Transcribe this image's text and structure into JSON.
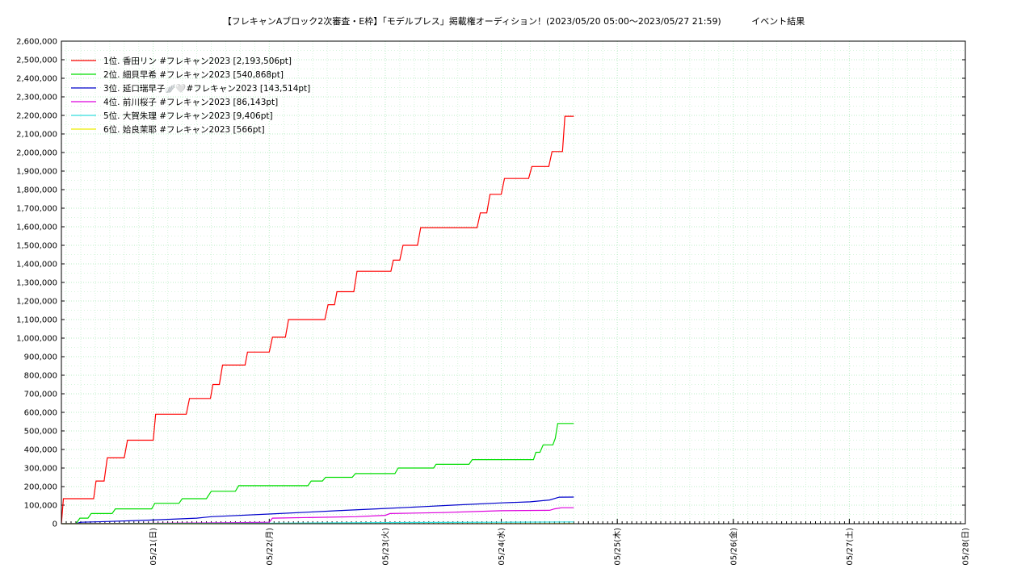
{
  "chart_data": {
    "type": "line",
    "title": "【フレキャンAブロック2次審査・E枠】「モデルプレス」掲載権オーディション！(2023/05/20 05:00〜2023/05/27 21:59)",
    "subtitle": "イベント結果",
    "xlabel": "",
    "ylabel": "",
    "xlim": [
      "2023-05-20 05:00",
      "2023-05-28 00:00"
    ],
    "ylim": [
      0,
      2600000
    ],
    "grid": true,
    "legend_position": "top-left",
    "x_ticks": [
      {
        "label": "05/21(日)",
        "t": "2023-05-21 00:00"
      },
      {
        "label": "05/22(月)",
        "t": "2023-05-22 00:00"
      },
      {
        "label": "05/23(火)",
        "t": "2023-05-23 00:00"
      },
      {
        "label": "05/24(水)",
        "t": "2023-05-24 00:00"
      },
      {
        "label": "05/25(木)",
        "t": "2023-05-25 00:00"
      },
      {
        "label": "05/26(金)",
        "t": "2023-05-26 00:00"
      },
      {
        "label": "05/27(土)",
        "t": "2023-05-27 00:00"
      },
      {
        "label": "05/28(日)",
        "t": "2023-05-28 00:00"
      }
    ],
    "y_ticks": [
      {
        "label": "2,600,000",
        "v": 2600000
      },
      {
        "label": "2,500,000",
        "v": 2500000
      },
      {
        "label": "2,400,000",
        "v": 2400000
      },
      {
        "label": "2,300,000",
        "v": 2300000
      },
      {
        "label": "2,200,000",
        "v": 2200000
      },
      {
        "label": "2,100,000",
        "v": 2100000
      },
      {
        "label": "2,000,000",
        "v": 2000000
      },
      {
        "label": "1,900,000",
        "v": 1900000
      },
      {
        "label": "1,800,000",
        "v": 1800000
      },
      {
        "label": "1,700,000",
        "v": 1700000
      },
      {
        "label": "1,600,000",
        "v": 1600000
      },
      {
        "label": "1,500,000",
        "v": 1500000
      },
      {
        "label": "1,400,000",
        "v": 1400000
      },
      {
        "label": "1,300,000",
        "v": 1300000
      },
      {
        "label": "1,200,000",
        "v": 1200000
      },
      {
        "label": "1,100,000",
        "v": 1100000
      },
      {
        "label": "1,000,000",
        "v": 1000000
      },
      {
        "label": "900,000",
        "v": 900000
      },
      {
        "label": "800,000",
        "v": 800000
      },
      {
        "label": "700,000",
        "v": 700000
      },
      {
        "label": "600,000",
        "v": 600000
      },
      {
        "label": "500,000",
        "v": 500000
      },
      {
        "label": "400,000",
        "v": 400000
      },
      {
        "label": "300,000",
        "v": 300000
      },
      {
        "label": "200,000",
        "v": 200000
      },
      {
        "label": "100,000",
        "v": 100000
      },
      {
        "label": "0",
        "v": 0
      }
    ],
    "series": [
      {
        "name": "1位. 香田リン #フレキャン2023 [2,193,506pt]",
        "color": "#ff0000",
        "points": [
          [
            "2023-05-20 05:00",
            0
          ],
          [
            "2023-05-20 05:25",
            135000
          ],
          [
            "2023-05-20 11:40",
            135000
          ],
          [
            "2023-05-20 12:10",
            230000
          ],
          [
            "2023-05-20 13:50",
            230000
          ],
          [
            "2023-05-20 14:30",
            355000
          ],
          [
            "2023-05-20 18:00",
            355000
          ],
          [
            "2023-05-20 18:40",
            450000
          ],
          [
            "2023-05-21 00:00",
            450000
          ],
          [
            "2023-05-21 00:30",
            590000
          ],
          [
            "2023-05-21 06:50",
            590000
          ],
          [
            "2023-05-21 07:30",
            675000
          ],
          [
            "2023-05-21 11:50",
            675000
          ],
          [
            "2023-05-21 12:20",
            750000
          ],
          [
            "2023-05-21 13:40",
            750000
          ],
          [
            "2023-05-21 14:20",
            855000
          ],
          [
            "2023-05-21 19:00",
            855000
          ],
          [
            "2023-05-21 19:30",
            925000
          ],
          [
            "2023-05-22 00:00",
            925000
          ],
          [
            "2023-05-22 00:40",
            1005000
          ],
          [
            "2023-05-22 03:20",
            1005000
          ],
          [
            "2023-05-22 04:00",
            1100000
          ],
          [
            "2023-05-22 11:30",
            1100000
          ],
          [
            "2023-05-22 12:10",
            1180000
          ],
          [
            "2023-05-22 13:30",
            1180000
          ],
          [
            "2023-05-22 14:00",
            1250000
          ],
          [
            "2023-05-22 17:30",
            1250000
          ],
          [
            "2023-05-22 18:10",
            1360000
          ],
          [
            "2023-05-23 01:10",
            1360000
          ],
          [
            "2023-05-23 01:40",
            1420000
          ],
          [
            "2023-05-23 03:00",
            1420000
          ],
          [
            "2023-05-23 03:40",
            1500000
          ],
          [
            "2023-05-23 06:40",
            1500000
          ],
          [
            "2023-05-23 07:20",
            1595000
          ],
          [
            "2023-05-23 19:00",
            1595000
          ],
          [
            "2023-05-23 19:40",
            1675000
          ],
          [
            "2023-05-23 21:00",
            1675000
          ],
          [
            "2023-05-23 21:40",
            1775000
          ],
          [
            "2023-05-24 00:00",
            1775000
          ],
          [
            "2023-05-24 00:40",
            1860000
          ],
          [
            "2023-05-24 05:40",
            1860000
          ],
          [
            "2023-05-24 06:20",
            1925000
          ],
          [
            "2023-05-24 09:50",
            1925000
          ],
          [
            "2023-05-24 10:30",
            2005000
          ],
          [
            "2023-05-24 12:40",
            2005000
          ],
          [
            "2023-05-24 13:10",
            2195000
          ],
          [
            "2023-05-24 15:00",
            2195000
          ]
        ]
      },
      {
        "name": "2位. 細貝早希 #フレキャン2023 [540,868pt]",
        "color": "#00dd00",
        "points": [
          [
            "2023-05-20 08:00",
            0
          ],
          [
            "2023-05-20 08:50",
            30000
          ],
          [
            "2023-05-20 10:30",
            30000
          ],
          [
            "2023-05-20 11:10",
            55000
          ],
          [
            "2023-05-20 15:30",
            55000
          ],
          [
            "2023-05-20 16:10",
            80000
          ],
          [
            "2023-05-20 23:40",
            80000
          ],
          [
            "2023-05-21 00:20",
            110000
          ],
          [
            "2023-05-21 05:20",
            110000
          ],
          [
            "2023-05-21 06:00",
            135000
          ],
          [
            "2023-05-21 11:00",
            135000
          ],
          [
            "2023-05-21 12:00",
            175000
          ],
          [
            "2023-05-21 17:00",
            175000
          ],
          [
            "2023-05-21 17:40",
            205000
          ],
          [
            "2023-05-22 08:00",
            205000
          ],
          [
            "2023-05-22 08:40",
            230000
          ],
          [
            "2023-05-22 11:00",
            230000
          ],
          [
            "2023-05-22 11:40",
            250000
          ],
          [
            "2023-05-22 17:10",
            250000
          ],
          [
            "2023-05-22 17:50",
            270000
          ],
          [
            "2023-05-23 02:00",
            270000
          ],
          [
            "2023-05-23 02:40",
            300000
          ],
          [
            "2023-05-23 10:00",
            300000
          ],
          [
            "2023-05-23 10:30",
            320000
          ],
          [
            "2023-05-23 17:20",
            320000
          ],
          [
            "2023-05-23 18:00",
            345000
          ],
          [
            "2023-05-24 06:40",
            345000
          ],
          [
            "2023-05-24 07:10",
            385000
          ],
          [
            "2023-05-24 08:00",
            385000
          ],
          [
            "2023-05-24 08:40",
            425000
          ],
          [
            "2023-05-24 10:40",
            425000
          ],
          [
            "2023-05-24 11:10",
            460000
          ],
          [
            "2023-05-24 11:40",
            540000
          ],
          [
            "2023-05-24 15:00",
            540000
          ]
        ]
      },
      {
        "name": "3位. 延口瑞早子🪽🤍#フレキャン2023 [143,514pt]",
        "color": "#0000cc",
        "points": [
          [
            "2023-05-20 08:00",
            0
          ],
          [
            "2023-05-20 09:00",
            8000
          ],
          [
            "2023-05-20 15:00",
            12000
          ],
          [
            "2023-05-21 00:00",
            20000
          ],
          [
            "2023-05-21 09:00",
            30000
          ],
          [
            "2023-05-21 12:00",
            38000
          ],
          [
            "2023-05-22 00:00",
            52000
          ],
          [
            "2023-05-22 08:00",
            62000
          ],
          [
            "2023-05-22 14:00",
            70000
          ],
          [
            "2023-05-23 00:00",
            82000
          ],
          [
            "2023-05-23 08:00",
            92000
          ],
          [
            "2023-05-23 14:00",
            100000
          ],
          [
            "2023-05-24 00:00",
            112000
          ],
          [
            "2023-05-24 06:00",
            118000
          ],
          [
            "2023-05-24 10:00",
            128000
          ],
          [
            "2023-05-24 12:00",
            143000
          ],
          [
            "2023-05-24 15:00",
            143500
          ]
        ]
      },
      {
        "name": "4位. 前川桜子 #フレキャン2023 [86,143pt]",
        "color": "#dd00dd",
        "points": [
          [
            "2023-05-20 05:00",
            0
          ],
          [
            "2023-05-21 00:00",
            2000
          ],
          [
            "2023-05-21 19:00",
            6000
          ],
          [
            "2023-05-22 00:00",
            8000
          ],
          [
            "2023-05-22 00:40",
            30000
          ],
          [
            "2023-05-22 18:00",
            38000
          ],
          [
            "2023-05-23 00:00",
            45000
          ],
          [
            "2023-05-23 01:00",
            55000
          ],
          [
            "2023-05-23 12:00",
            60000
          ],
          [
            "2023-05-24 00:00",
            70000
          ],
          [
            "2023-05-24 10:00",
            72000
          ],
          [
            "2023-05-24 11:00",
            80000
          ],
          [
            "2023-05-24 12:30",
            86000
          ],
          [
            "2023-05-24 15:00",
            86100
          ]
        ]
      },
      {
        "name": "5位. 大賀朱理 #フレキャン2023 [9,406pt]",
        "color": "#33dddd",
        "points": [
          [
            "2023-05-20 05:00",
            0
          ],
          [
            "2023-05-22 00:00",
            3000
          ],
          [
            "2023-05-23 00:00",
            6000
          ],
          [
            "2023-05-24 00:00",
            8000
          ],
          [
            "2023-05-24 15:00",
            9400
          ]
        ]
      },
      {
        "name": "6位. 姶良茉耶 #フレキャン2023 [566pt]",
        "color": "#eeee00",
        "points": [
          [
            "2023-05-20 05:00",
            0
          ],
          [
            "2023-05-24 15:00",
            566
          ]
        ]
      }
    ]
  }
}
